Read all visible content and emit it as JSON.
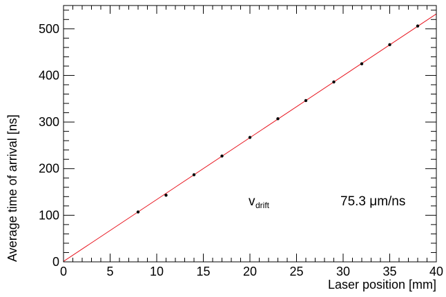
{
  "chart_data": {
    "type": "scatter",
    "xlabel": "Laser position [mm]",
    "ylabel": "Average time of arrival [ns]",
    "xlim": [
      0,
      40
    ],
    "ylim": [
      0,
      550
    ],
    "x_ticks": [
      0,
      5,
      10,
      15,
      20,
      25,
      30,
      35,
      40
    ],
    "y_ticks": [
      0,
      100,
      200,
      300,
      400,
      500
    ],
    "x_tick_labels": [
      "0",
      "5",
      "10",
      "15",
      "20",
      "25",
      "30",
      "35",
      "40"
    ],
    "y_tick_labels": [
      "0",
      "100",
      "200",
      "300",
      "400",
      "500"
    ],
    "grid": false,
    "points": {
      "x": [
        8,
        11,
        14,
        17,
        20,
        23,
        26,
        29,
        32,
        35,
        38
      ],
      "y": [
        107,
        143,
        187,
        227,
        267,
        307,
        346,
        386,
        425,
        466,
        506
      ]
    },
    "fit_line": {
      "color": "#e8141e",
      "x_start": 0,
      "y_start": 1,
      "x_end": 40,
      "y_end": 532
    },
    "annotation": {
      "symbol": "v",
      "subscript": "drift",
      "value": "75.3 μm/ns"
    },
    "point_color": "#000000"
  }
}
